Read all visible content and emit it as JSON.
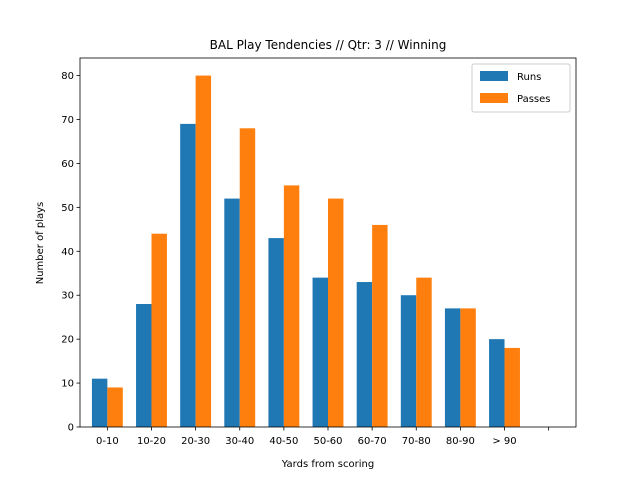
{
  "chart_data": {
    "type": "bar",
    "title": "BAL Play Tendencies // Qtr: 3 // Winning",
    "xlabel": "Yards from scoring",
    "ylabel": "Number of plays",
    "categories": [
      "0-10",
      "10-20",
      "20-30",
      "30-40",
      "40-50",
      "50-60",
      "60-70",
      "70-80",
      "80-90",
      "> 90",
      ""
    ],
    "series": [
      {
        "name": "Runs",
        "color": "#1f77b4",
        "values": [
          11,
          28,
          69,
          52,
          43,
          34,
          33,
          30,
          27,
          20,
          null
        ]
      },
      {
        "name": "Passes",
        "color": "#ff7f0e",
        "values": [
          9,
          44,
          80,
          68,
          55,
          52,
          46,
          34,
          27,
          18,
          null
        ]
      }
    ],
    "ylim": [
      0,
      84
    ],
    "yticks": [
      0,
      10,
      20,
      30,
      40,
      50,
      60,
      70,
      80
    ],
    "grid": false,
    "legend": "top-right"
  }
}
